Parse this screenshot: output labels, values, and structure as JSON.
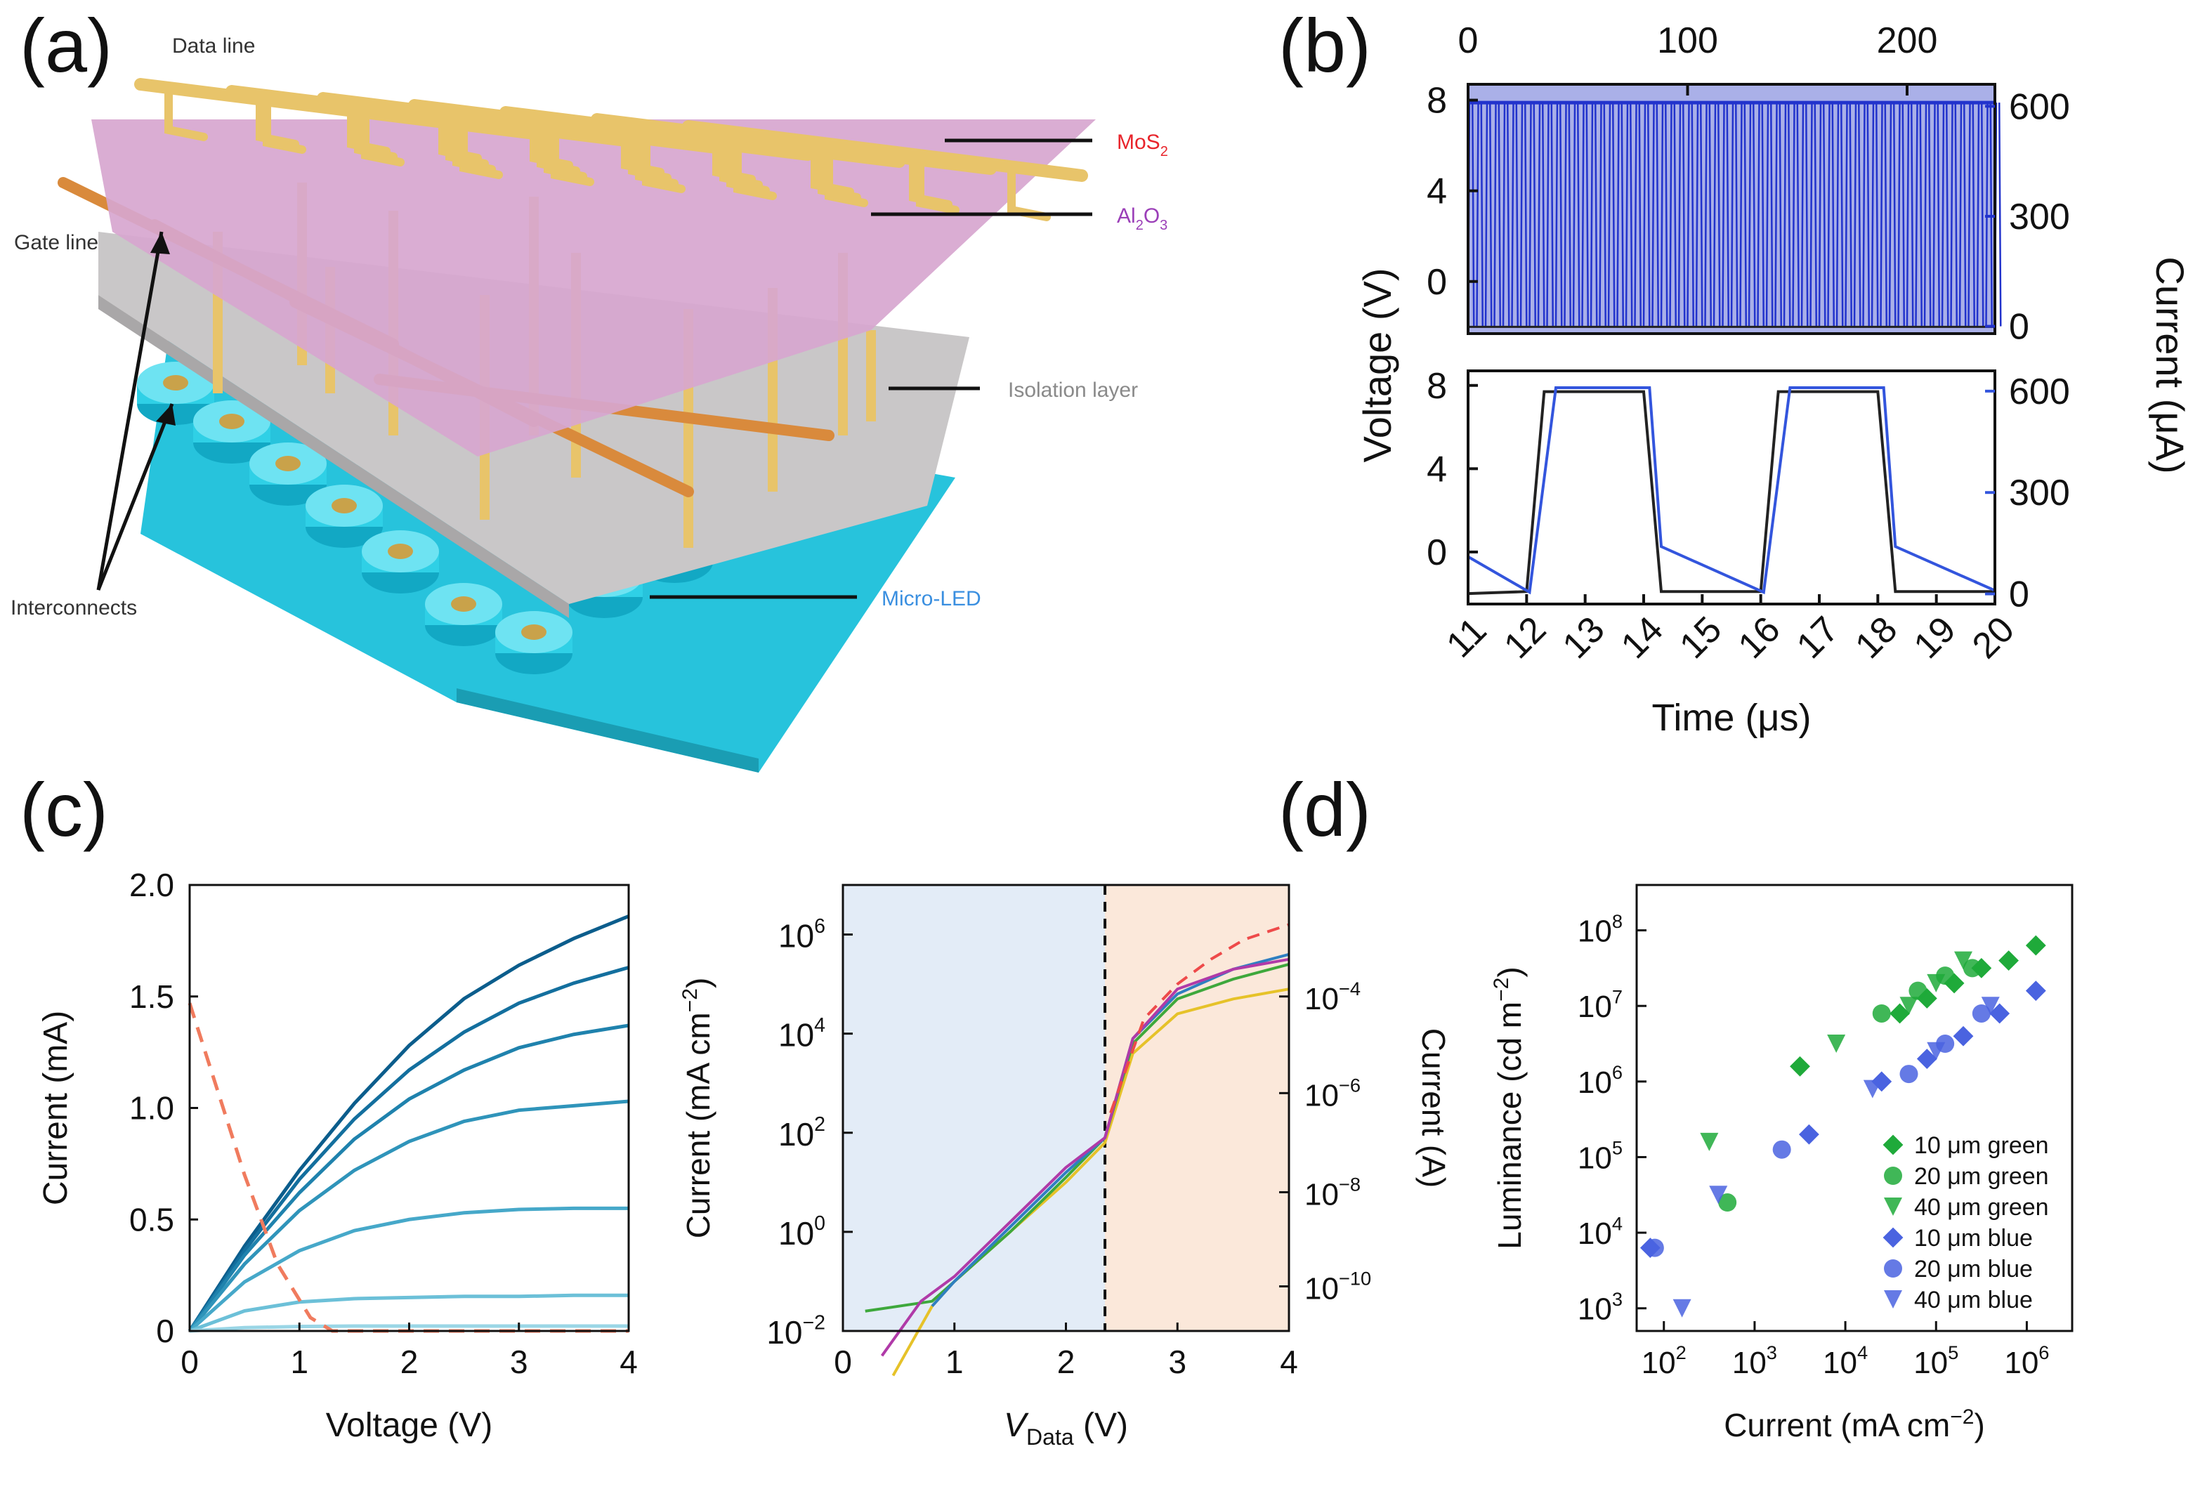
{
  "panel_letters": [
    "(a)",
    "(b)",
    "(c)",
    "(d)"
  ],
  "panel_a": {
    "labels": {
      "data_line": "Data line",
      "gate_line": "Gate line",
      "mos2": "MoS",
      "mos2_sub": "2",
      "al2o3_a": "Al",
      "al2o3_sub1": "2",
      "al2o3_b": "O",
      "al2o3_sub2": "3",
      "isolation": "Isolation layer",
      "interconnects": "Interconnects",
      "micro_led": "Micro-LED"
    },
    "colors": {
      "mos2": "#e8242b",
      "al2o3": "#9b3fb8",
      "isolation": "#8a8a8a",
      "micro_led": "#3a8fe0",
      "substrate": "#27c3dc",
      "metal": "#e8c46a"
    }
  },
  "chart_data": [
    {
      "id": "b-top",
      "type": "line",
      "title": "",
      "x_top_ticks": [
        "0",
        "100",
        "200"
      ],
      "x_top_range": [
        0,
        240
      ],
      "ylabel_left": "Voltage (V)",
      "ylabel_right": "Current (μA)",
      "y_left_ticks": [
        "8",
        "4",
        "0"
      ],
      "y_left_range": [
        -2.3,
        8.7
      ],
      "y_right_ticks": [
        "600",
        "300",
        "0"
      ],
      "y_right_range": [
        -20,
        660
      ],
      "square_wave": {
        "period_units": 4,
        "low_V": -2,
        "high_V": 7.7,
        "low_uA": 0,
        "high_uA": 610
      },
      "colors": {
        "voltage": "#222222",
        "current": "#2233cc",
        "current_fill": "#aab0e8"
      }
    },
    {
      "id": "b-bottom",
      "type": "line",
      "xlabel": "Time (μs)",
      "ylabel_left": "Voltage (V)",
      "ylabel_right": "Current (μA)",
      "x_ticks": [
        "11",
        "12",
        "13",
        "14",
        "15",
        "16",
        "17",
        "18",
        "19",
        "20"
      ],
      "x_range": [
        11,
        20
      ],
      "y_left_ticks": [
        "8",
        "4",
        "0"
      ],
      "y_left_range": [
        -2.5,
        8.7
      ],
      "y_right_ticks": [
        "600",
        "300",
        "0"
      ],
      "y_right_range": [
        -30,
        660
      ],
      "series": [
        {
          "name": "Voltage",
          "axis": "left",
          "color": "#222222",
          "x": [
            11,
            12,
            12.3,
            14.0,
            14.3,
            16.0,
            16.3,
            18.0,
            18.3,
            20
          ],
          "y": [
            -2.0,
            -1.9,
            7.7,
            7.7,
            -1.9,
            -1.9,
            7.7,
            7.7,
            -1.9,
            -1.9
          ]
        },
        {
          "name": "Current",
          "axis": "right",
          "color": "#3355dd",
          "x": [
            11,
            12.05,
            12.5,
            14.1,
            14.3,
            16.05,
            16.5,
            18.1,
            18.3,
            20
          ],
          "y": [
            110,
            5,
            610,
            610,
            140,
            5,
            610,
            610,
            140,
            10
          ]
        }
      ]
    },
    {
      "id": "c-left",
      "type": "line",
      "xlabel": "Voltage (V)",
      "ylabel": "Current (mA)",
      "x_ticks": [
        "0",
        "1",
        "2",
        "3",
        "4"
      ],
      "x_range": [
        0,
        4
      ],
      "y_ticks": [
        "0",
        "0.5",
        "1.0",
        "1.5",
        "2.0"
      ],
      "y_range": [
        0,
        2.0
      ],
      "x": [
        0,
        0.5,
        1,
        1.5,
        2,
        2.5,
        3,
        3.5,
        4
      ],
      "series": [
        {
          "name": "curve1",
          "color": "#0b5d8c",
          "values": [
            0,
            0.38,
            0.72,
            1.02,
            1.28,
            1.49,
            1.64,
            1.76,
            1.86
          ]
        },
        {
          "name": "curve2",
          "color": "#136f9e",
          "values": [
            0,
            0.36,
            0.68,
            0.95,
            1.17,
            1.34,
            1.47,
            1.56,
            1.63
          ]
        },
        {
          "name": "curve3",
          "color": "#1f82ad",
          "values": [
            0,
            0.34,
            0.62,
            0.86,
            1.04,
            1.17,
            1.27,
            1.33,
            1.37
          ]
        },
        {
          "name": "curve4",
          "color": "#2f94ba",
          "values": [
            0,
            0.3,
            0.54,
            0.72,
            0.85,
            0.94,
            0.99,
            1.01,
            1.03
          ]
        },
        {
          "name": "curve5",
          "color": "#46a8c9",
          "values": [
            0,
            0.22,
            0.36,
            0.45,
            0.5,
            0.53,
            0.545,
            0.55,
            0.55
          ]
        },
        {
          "name": "curve6",
          "color": "#6cc0d8",
          "values": [
            0,
            0.09,
            0.13,
            0.145,
            0.15,
            0.155,
            0.155,
            0.16,
            0.16
          ]
        },
        {
          "name": "curve7",
          "color": "#9ad6e6",
          "values": [
            0,
            0.015,
            0.02,
            0.022,
            0.022,
            0.022,
            0.022,
            0.022,
            0.022
          ]
        },
        {
          "name": "dashed",
          "color": "#f07b5e",
          "dashed": true,
          "x": [
            0,
            0.5,
            0.8,
            1.1,
            1.3,
            4
          ],
          "values": [
            1.47,
            0.7,
            0.3,
            0.06,
            0.0,
            0.0
          ]
        }
      ]
    },
    {
      "id": "c-right",
      "type": "line",
      "xlabel_main": "V",
      "xlabel_sub": "Data",
      "xlabel_unit": " (V)",
      "ylabel_left": "Current (mA cm",
      "ylabel_left_sup": "−2",
      "ylabel_left_close": ")",
      "ylabel_right": "Current (A)",
      "x_ticks": [
        "0",
        "1",
        "2",
        "3",
        "4"
      ],
      "x_range": [
        0,
        4
      ],
      "y_left_ticks": [
        {
          "base": "10",
          "exp": "−2"
        },
        {
          "base": "10",
          "exp": "0"
        },
        {
          "base": "10",
          "exp": "2"
        },
        {
          "base": "10",
          "exp": "4"
        },
        {
          "base": "10",
          "exp": "6"
        }
      ],
      "y_left_log_range": [
        -2,
        7
      ],
      "y_right_ticks": [
        {
          "base": "10",
          "exp": "−10"
        },
        {
          "base": "10",
          "exp": "−8"
        },
        {
          "base": "10",
          "exp": "−6"
        },
        {
          "base": "10",
          "exp": "−4"
        }
      ],
      "threshold_x": 2.35,
      "region_colors": {
        "left": "#e3ecf7",
        "right": "#fbe8da"
      },
      "series": [
        {
          "name": "s1",
          "color": "#e6c229",
          "x": [
            0.45,
            0.8,
            1.0,
            1.5,
            2.0,
            2.35,
            2.6,
            3.0,
            3.5,
            4.0
          ],
          "log_values": [
            -2.9,
            -1.5,
            -1.0,
            0.0,
            1.0,
            1.8,
            3.6,
            4.4,
            4.7,
            4.9
          ]
        },
        {
          "name": "s2",
          "color": "#3ea83c",
          "x": [
            0.2,
            0.8,
            1.0,
            1.5,
            2.0,
            2.35,
            2.6,
            3.0,
            3.5,
            4.0
          ],
          "log_values": [
            -1.6,
            -1.4,
            -1.0,
            0.0,
            1.1,
            1.9,
            3.8,
            4.7,
            5.1,
            5.4
          ]
        },
        {
          "name": "s3",
          "color": "#2f7fc1",
          "x": [
            0.8,
            1.0,
            1.5,
            2.0,
            2.35,
            2.6,
            3.0,
            3.5,
            4.0
          ],
          "log_values": [
            -1.5,
            -1.0,
            0.1,
            1.2,
            1.9,
            3.9,
            4.8,
            5.3,
            5.6
          ]
        },
        {
          "name": "s4",
          "color": "#b03aa8",
          "x": [
            0.35,
            0.7,
            1.0,
            1.5,
            2.0,
            2.35,
            2.6,
            3.0,
            3.5,
            4.0
          ],
          "log_values": [
            -2.5,
            -1.4,
            -0.9,
            0.2,
            1.3,
            1.9,
            3.9,
            4.9,
            5.3,
            5.5
          ]
        },
        {
          "name": "dashed",
          "color": "#ee4a4a",
          "dashed": true,
          "x": [
            2.4,
            2.7,
            3.0,
            3.3,
            3.6,
            4.0
          ],
          "log_values": [
            2.4,
            4.3,
            5.0,
            5.5,
            5.9,
            6.2
          ]
        }
      ]
    },
    {
      "id": "d",
      "type": "scatter",
      "xlabel": "Current (mA cm",
      "xlabel_sup": "−2",
      "xlabel_close": ")",
      "ylabel": "Luminance (cd m",
      "ylabel_sup": "−2",
      "ylabel_close": ")",
      "x_ticks": [
        {
          "base": "10",
          "exp": "2"
        },
        {
          "base": "10",
          "exp": "3"
        },
        {
          "base": "10",
          "exp": "4"
        },
        {
          "base": "10",
          "exp": "5"
        },
        {
          "base": "10",
          "exp": "6"
        }
      ],
      "x_log_range": [
        1.7,
        6.5
      ],
      "y_ticks": [
        {
          "base": "10",
          "exp": "3"
        },
        {
          "base": "10",
          "exp": "4"
        },
        {
          "base": "10",
          "exp": "5"
        },
        {
          "base": "10",
          "exp": "6"
        },
        {
          "base": "10",
          "exp": "7"
        },
        {
          "base": "10",
          "exp": "8"
        }
      ],
      "y_log_range": [
        2.7,
        8.6
      ],
      "legend_position": "bottom-right",
      "series": [
        {
          "name": "10 μm green",
          "color": "#1faa3a",
          "marker": "diamond",
          "log_x": [
            3.5,
            4.6,
            4.9,
            5.2,
            5.5,
            5.8,
            6.1
          ],
          "log_y": [
            6.2,
            6.9,
            7.1,
            7.3,
            7.5,
            7.6,
            7.8
          ]
        },
        {
          "name": "20 μm green",
          "color": "#1faa3a",
          "marker": "circle",
          "log_x": [
            2.7,
            4.4,
            4.8,
            5.1,
            5.4
          ],
          "log_y": [
            4.4,
            6.9,
            7.2,
            7.4,
            7.5
          ]
        },
        {
          "name": "40 μm green",
          "color": "#1faa3a",
          "marker": "triangle-down",
          "log_x": [
            2.5,
            3.9,
            4.7,
            5.0,
            5.3
          ],
          "log_y": [
            5.2,
            6.5,
            7.0,
            7.3,
            7.6
          ]
        },
        {
          "name": "10 μm blue",
          "color": "#4a63e0",
          "marker": "diamond",
          "log_x": [
            1.85,
            3.6,
            4.4,
            4.9,
            5.3,
            5.7,
            6.1
          ],
          "log_y": [
            3.8,
            5.3,
            6.0,
            6.3,
            6.6,
            6.9,
            7.2
          ]
        },
        {
          "name": "20 μm blue",
          "color": "#4a63e0",
          "marker": "circle",
          "log_x": [
            1.9,
            3.3,
            4.7,
            5.1,
            5.5
          ],
          "log_y": [
            3.8,
            5.1,
            6.1,
            6.5,
            6.9
          ]
        },
        {
          "name": "40 μm blue",
          "color": "#4a63e0",
          "marker": "triangle-down",
          "log_x": [
            2.2,
            2.6,
            4.3,
            5.0,
            5.6
          ],
          "log_y": [
            3.0,
            4.5,
            5.9,
            6.4,
            7.0
          ]
        }
      ]
    }
  ]
}
